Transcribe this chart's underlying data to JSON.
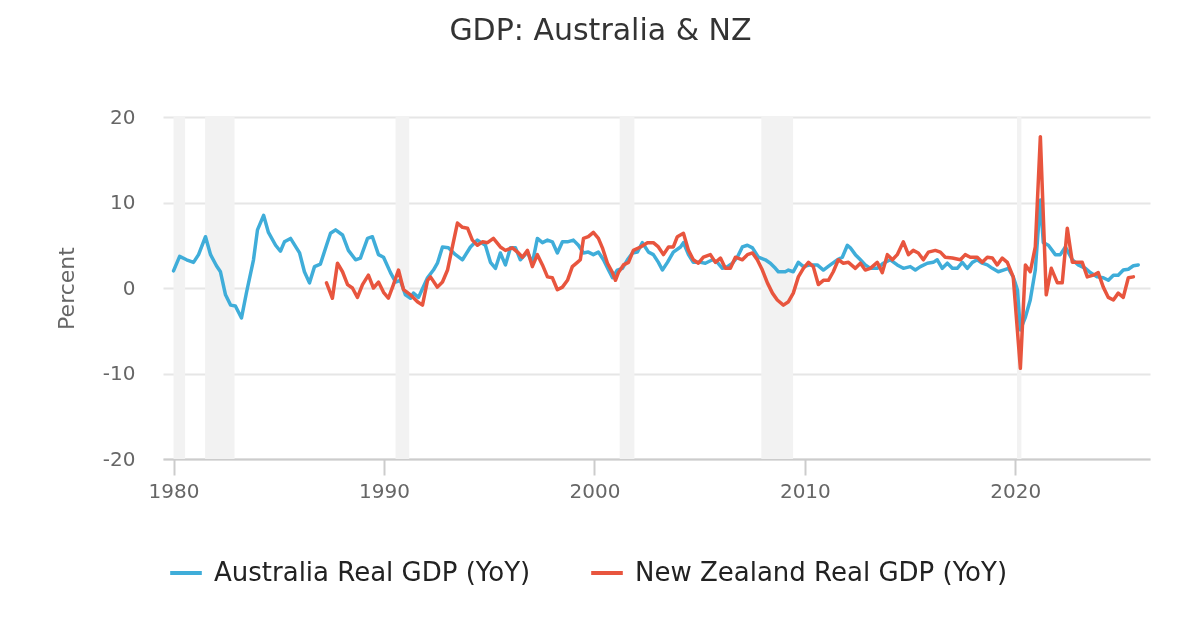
{
  "chart_data": {
    "type": "line",
    "title": "GDP: Australia & NZ",
    "ylabel": "Percent",
    "xlim": [
      1979.5,
      2026.4
    ],
    "xticks": [
      1980,
      1990,
      2000,
      2010,
      2020
    ],
    "ylim": [
      -20,
      20
    ],
    "yticks": [
      -20,
      -10,
      0,
      10,
      20
    ],
    "grid": "y",
    "legend": "bottom",
    "bands": [
      {
        "axis": "x",
        "from": 1980.0,
        "to": 1980.55,
        "color": "#f2f2f2"
      },
      {
        "axis": "x",
        "from": 1981.5,
        "to": 1982.9,
        "color": "#f2f2f2"
      },
      {
        "axis": "x",
        "from": 1990.55,
        "to": 1991.2,
        "color": "#f2f2f2"
      },
      {
        "axis": "x",
        "from": 2001.2,
        "to": 2001.9,
        "color": "#f2f2f2"
      },
      {
        "axis": "x",
        "from": 2007.93,
        "to": 2009.44,
        "color": "#f2f2f2"
      },
      {
        "axis": "x",
        "from": 2020.08,
        "to": 2020.29,
        "color": "#f2f2f2"
      }
    ],
    "series": [
      {
        "name": "Australia Real GDP (YoY)",
        "color": "#3fadd9",
        "x": [
          1980.0,
          1980.29,
          1980.62,
          1980.95,
          1981.19,
          1981.52,
          1981.76,
          1982.04,
          1982.23,
          1982.47,
          1982.71,
          1982.94,
          1983.23,
          1983.47,
          1983.8,
          1983.99,
          1984.28,
          1984.51,
          1984.85,
          1985.08,
          1985.27,
          1985.56,
          1985.84,
          1985.99,
          1986.22,
          1986.46,
          1986.7,
          1986.98,
          1987.27,
          1987.46,
          1987.7,
          1988.03,
          1988.31,
          1988.65,
          1988.88,
          1989.22,
          1989.45,
          1989.74,
          1989.98,
          1990.31,
          1990.55,
          1990.78,
          1991.02,
          1991.26,
          1991.4,
          1991.64,
          1992.07,
          1992.35,
          1992.54,
          1992.78,
          1993.06,
          1993.4,
          1993.73,
          1994.11,
          1994.44,
          1994.82,
          1995.06,
          1995.3,
          1995.53,
          1995.77,
          1996.01,
          1996.25,
          1996.48,
          1996.82,
          1997.05,
          1997.29,
          1997.53,
          1997.77,
          1998.0,
          1998.24,
          1998.48,
          1998.72,
          1999.0,
          1999.24,
          1999.48,
          1999.71,
          1999.95,
          2000.19,
          2000.43,
          2000.67,
          2000.86,
          2001.09,
          2001.33,
          2001.57,
          2001.81,
          2002.04,
          2002.28,
          2002.57,
          2002.8,
          2003.04,
          2003.23,
          2003.47,
          2003.75,
          2004.09,
          2004.23,
          2004.47,
          2004.7,
          2005.04,
          2005.27,
          2005.61,
          2005.84,
          2006.08,
          2006.32,
          2006.56,
          2006.79,
          2007.03,
          2007.27,
          2007.51,
          2007.79,
          2008.12,
          2008.36,
          2008.6,
          2008.74,
          2009.07,
          2009.22,
          2009.45,
          2009.69,
          2009.93,
          2010.26,
          2010.59,
          2010.88,
          2011.21,
          2011.54,
          2011.78,
          2012.02,
          2012.16,
          2012.4,
          2012.64,
          2012.87,
          2013.11,
          2013.44,
          2013.73,
          2014.06,
          2014.39,
          2014.68,
          2015.01,
          2015.25,
          2015.49,
          2015.82,
          2016.1,
          2016.29,
          2016.53,
          2016.77,
          2017.01,
          2017.24,
          2017.48,
          2017.72,
          2017.96,
          2018.19,
          2018.43,
          2018.67,
          2018.91,
          2019.19,
          2019.43,
          2019.67,
          2019.9,
          2020.1,
          2020.24,
          2020.48,
          2020.71,
          2020.95,
          2021.19,
          2021.33,
          2021.57,
          2021.9,
          2022.14,
          2022.38,
          2022.71,
          2022.99,
          2023.33,
          2023.56,
          2023.9,
          2024.18,
          2024.42,
          2024.66,
          2024.89,
          2025.13,
          2025.37,
          2025.61,
          2025.84
        ],
        "values": [
          2.0,
          3.7,
          3.3,
          3.0,
          3.9,
          6.0,
          3.9,
          2.6,
          1.9,
          -0.8,
          -2.0,
          -2.1,
          -3.5,
          -0.5,
          3.3,
          6.8,
          8.5,
          6.5,
          5.0,
          4.3,
          5.4,
          5.8,
          4.7,
          4.1,
          1.9,
          0.6,
          2.5,
          2.8,
          5.0,
          6.4,
          6.8,
          6.2,
          4.4,
          3.3,
          3.5,
          5.8,
          6.0,
          3.9,
          3.6,
          1.8,
          0.7,
          0.9,
          -0.8,
          -1.2,
          -0.6,
          -1.1,
          1.2,
          2.1,
          2.9,
          4.8,
          4.7,
          3.9,
          3.3,
          4.8,
          5.6,
          5.0,
          3.0,
          2.3,
          4.1,
          2.7,
          4.7,
          4.7,
          3.3,
          4.2,
          2.9,
          5.8,
          5.3,
          5.6,
          5.4,
          4.1,
          5.4,
          5.4,
          5.6,
          5.0,
          4.1,
          4.2,
          3.9,
          4.2,
          3.3,
          2.1,
          1.2,
          2.1,
          2.3,
          3.3,
          4.1,
          4.2,
          5.3,
          4.2,
          3.9,
          3.0,
          2.1,
          3.0,
          4.2,
          4.8,
          5.3,
          3.9,
          3.0,
          3.0,
          2.9,
          3.3,
          3.0,
          2.3,
          2.5,
          2.9,
          3.6,
          4.8,
          5.0,
          4.7,
          3.6,
          3.3,
          2.9,
          2.3,
          1.9,
          1.9,
          2.1,
          1.9,
          3.0,
          2.5,
          2.7,
          2.7,
          2.1,
          2.7,
          3.3,
          3.6,
          5.0,
          4.7,
          3.9,
          3.3,
          2.7,
          2.3,
          2.3,
          2.9,
          3.3,
          2.7,
          2.3,
          2.5,
          2.1,
          2.5,
          2.9,
          3.0,
          3.3,
          2.3,
          2.9,
          2.3,
          2.3,
          3.0,
          2.3,
          3.0,
          3.3,
          2.9,
          2.7,
          2.3,
          1.9,
          2.1,
          2.3,
          1.3,
          -0.2,
          -4.9,
          -3.4,
          -1.4,
          2.1,
          10.3,
          5.3,
          5.0,
          3.9,
          3.9,
          4.8,
          3.3,
          2.7,
          2.3,
          1.8,
          1.3,
          1.2,
          0.9,
          1.5,
          1.5,
          2.1,
          2.2,
          2.6,
          2.7
        ]
      },
      {
        "name": "New Zealand Real GDP (YoY)",
        "color": "#e8553e",
        "x": [
          1987.27,
          1987.55,
          1987.79,
          1988.03,
          1988.27,
          1988.5,
          1988.74,
          1988.98,
          1989.26,
          1989.5,
          1989.74,
          1989.98,
          1990.21,
          1990.45,
          1990.69,
          1990.93,
          1991.26,
          1991.59,
          1991.83,
          1992.07,
          1992.21,
          1992.54,
          1992.78,
          1993.02,
          1993.25,
          1993.49,
          1993.73,
          1993.97,
          1994.2,
          1994.44,
          1994.68,
          1994.92,
          1995.2,
          1995.53,
          1995.77,
          1996.1,
          1996.39,
          1996.58,
          1996.82,
          1997.05,
          1997.29,
          1997.53,
          1997.77,
          1998.0,
          1998.24,
          1998.48,
          1998.72,
          1998.95,
          1999.19,
          1999.33,
          1999.48,
          1999.71,
          1999.95,
          2000.19,
          2000.38,
          2000.62,
          2000.86,
          2001.0,
          2001.14,
          2001.38,
          2001.62,
          2001.85,
          2002.19,
          2002.52,
          2002.8,
          2003.04,
          2003.28,
          2003.52,
          2003.75,
          2003.94,
          2004.23,
          2004.47,
          2004.7,
          2004.94,
          2005.18,
          2005.51,
          2005.75,
          2005.99,
          2006.22,
          2006.46,
          2006.7,
          2007.03,
          2007.27,
          2007.51,
          2007.74,
          2007.98,
          2008.22,
          2008.46,
          2008.69,
          2008.98,
          2009.22,
          2009.45,
          2009.69,
          2009.93,
          2010.17,
          2010.4,
          2010.64,
          2010.88,
          2011.12,
          2011.35,
          2011.59,
          2011.83,
          2012.07,
          2012.4,
          2012.64,
          2012.87,
          2013.11,
          2013.44,
          2013.68,
          2013.92,
          2014.16,
          2014.39,
          2014.68,
          2014.92,
          2015.15,
          2015.39,
          2015.63,
          2015.87,
          2016.2,
          2016.44,
          2016.67,
          2017.01,
          2017.39,
          2017.62,
          2017.86,
          2018.19,
          2018.43,
          2018.67,
          2018.91,
          2019.14,
          2019.38,
          2019.62,
          2019.9,
          2020.24,
          2020.48,
          2020.71,
          2020.95,
          2021.19,
          2021.47,
          2021.71,
          2022.0,
          2022.23,
          2022.47,
          2022.71,
          2022.95,
          2023.18,
          2023.42,
          2023.71,
          2023.94,
          2024.18,
          2024.42,
          2024.66,
          2024.89,
          2025.13,
          2025.37,
          2025.61
        ],
        "values": [
          0.6,
          -1.2,
          2.9,
          1.9,
          0.4,
          0.0,
          -1.1,
          0.4,
          1.5,
          0.0,
          0.7,
          -0.5,
          -1.2,
          0.4,
          2.1,
          -0.2,
          -0.8,
          -1.6,
          -2.0,
          0.9,
          1.3,
          0.1,
          0.7,
          2.1,
          4.8,
          7.6,
          7.1,
          7.0,
          5.6,
          5.0,
          5.4,
          5.3,
          5.8,
          4.8,
          4.4,
          4.7,
          4.1,
          3.6,
          4.4,
          2.5,
          3.9,
          2.7,
          1.3,
          1.2,
          -0.2,
          0.1,
          0.9,
          2.5,
          3.0,
          3.3,
          5.8,
          6.0,
          6.5,
          5.8,
          4.7,
          2.9,
          1.8,
          0.9,
          1.8,
          2.7,
          3.0,
          4.4,
          4.8,
          5.3,
          5.3,
          4.8,
          3.9,
          4.8,
          4.8,
          6.0,
          6.4,
          4.4,
          3.3,
          2.9,
          3.6,
          3.9,
          3.0,
          3.5,
          2.3,
          2.3,
          3.6,
          3.3,
          3.9,
          4.1,
          3.3,
          2.1,
          0.6,
          -0.6,
          -1.4,
          -2.0,
          -1.6,
          -0.6,
          1.3,
          2.3,
          3.0,
          2.5,
          0.4,
          0.9,
          0.9,
          1.9,
          3.3,
          2.9,
          3.0,
          2.3,
          2.9,
          2.1,
          2.3,
          3.0,
          1.8,
          3.9,
          3.3,
          3.9,
          5.4,
          3.9,
          4.4,
          4.1,
          3.3,
          4.2,
          4.4,
          4.2,
          3.6,
          3.5,
          3.3,
          3.9,
          3.6,
          3.6,
          3.0,
          3.6,
          3.5,
          2.7,
          3.5,
          3.0,
          1.3,
          -9.4,
          2.7,
          1.9,
          4.8,
          17.7,
          -0.8,
          2.3,
          0.6,
          0.6,
          7.0,
          3.0,
          3.0,
          3.0,
          1.3,
          1.5,
          1.8,
          0.1,
          -1.1,
          -1.4,
          -0.6,
          -1.1,
          1.2,
          1.3
        ]
      }
    ]
  }
}
